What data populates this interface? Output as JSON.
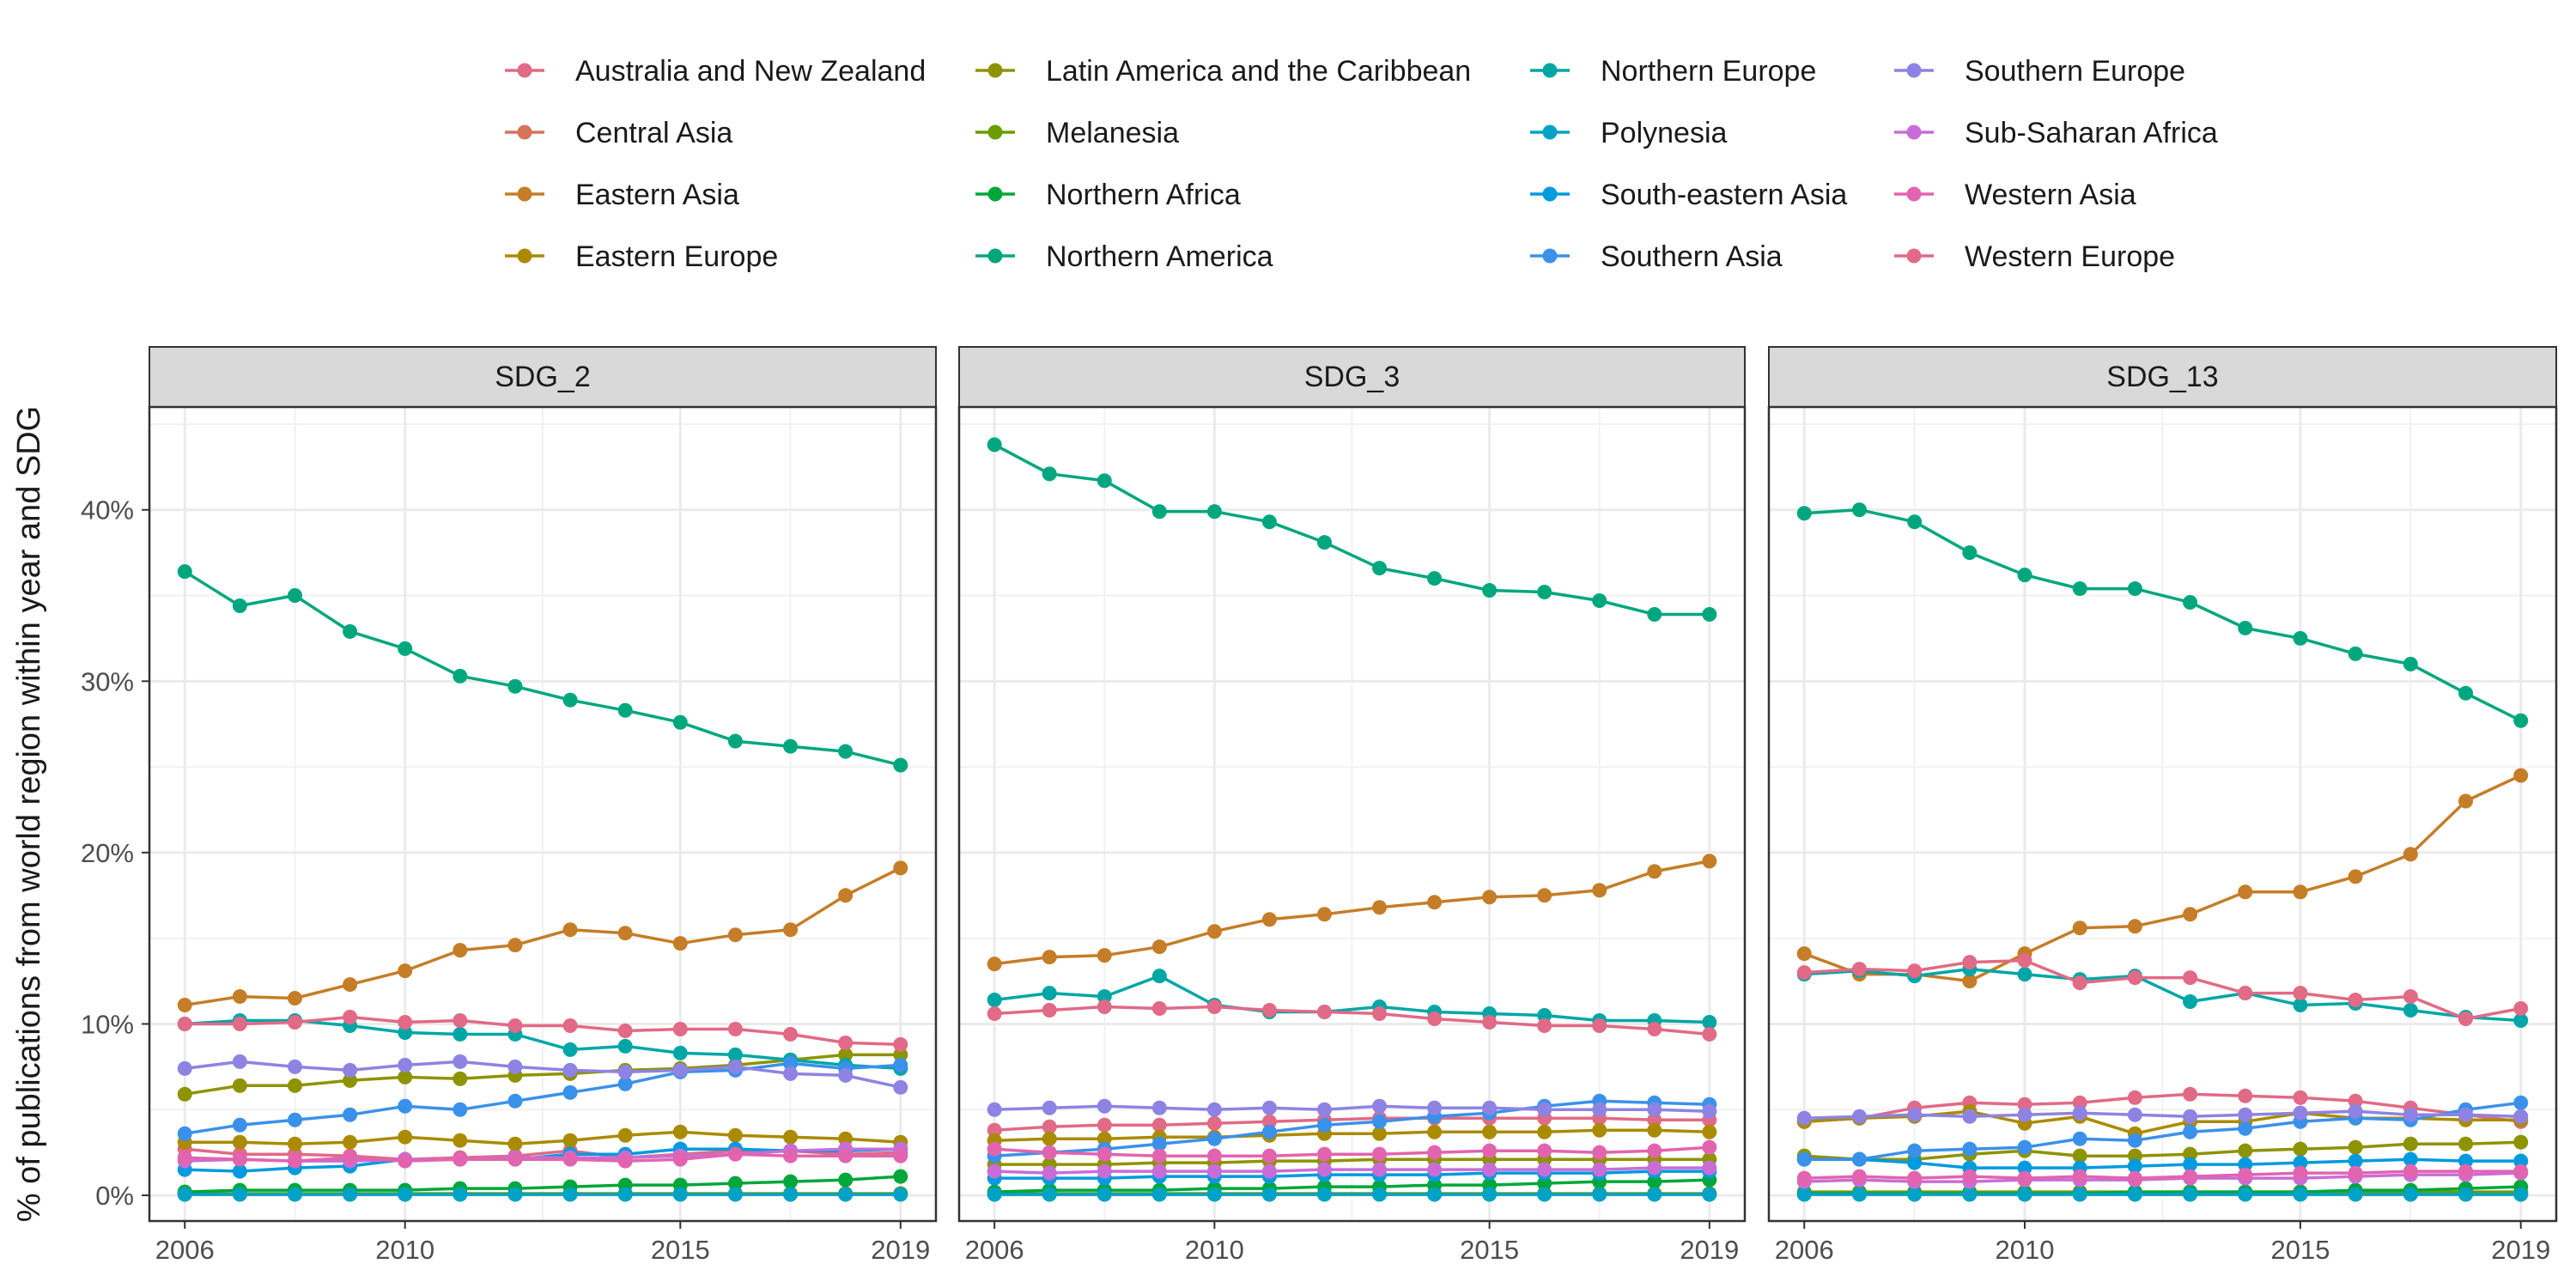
{
  "chart_data": {
    "type": "line",
    "ylabel": "% of publications from world region within year and SDG",
    "xlabel": "",
    "x": [
      2006,
      2007,
      2008,
      2009,
      2010,
      2011,
      2012,
      2013,
      2014,
      2015,
      2016,
      2017,
      2018,
      2019
    ],
    "x_ticks": [
      2006,
      2010,
      2015,
      2019
    ],
    "y_ticks": [
      0,
      10,
      20,
      30,
      40
    ],
    "y_tick_labels": [
      "0%",
      "10%",
      "20%",
      "30%",
      "40%"
    ],
    "ylim": [
      -1.5,
      46
    ],
    "legend_position": "top",
    "facets": [
      "SDG_2",
      "SDG_3",
      "SDG_13"
    ],
    "series": [
      {
        "name": "Australia and New Zealand",
        "color": "#E16A86",
        "values": {
          "SDG_2": [
            2.7,
            2.4,
            2.4,
            2.3,
            2.1,
            2.2,
            2.3,
            2.6,
            2.2,
            2.4,
            2.6,
            2.6,
            2.4,
            2.5
          ],
          "SDG_3": [
            3.8,
            4.0,
            4.1,
            4.1,
            4.2,
            4.3,
            4.4,
            4.5,
            4.5,
            4.5,
            4.5,
            4.5,
            4.4,
            4.4
          ],
          "SDG_13": [
            4.3,
            4.5,
            5.1,
            5.4,
            5.3,
            5.4,
            5.7,
            5.9,
            5.8,
            5.7,
            5.5,
            5.1,
            4.7,
            4.3
          ]
        }
      },
      {
        "name": "Central Asia",
        "color": "#D5735B",
        "values": {
          "SDG_2": [
            0.1,
            0.1,
            0.1,
            0.1,
            0.1,
            0.1,
            0.1,
            0.1,
            0.1,
            0.1,
            0.1,
            0.1,
            0.1,
            0.1
          ],
          "SDG_3": [
            0.1,
            0.1,
            0.1,
            0.1,
            0.1,
            0.1,
            0.1,
            0.1,
            0.1,
            0.1,
            0.1,
            0.1,
            0.1,
            0.1
          ],
          "SDG_13": [
            0.1,
            0.1,
            0.1,
            0.1,
            0.1,
            0.1,
            0.1,
            0.1,
            0.1,
            0.1,
            0.1,
            0.1,
            0.1,
            0.1
          ]
        }
      },
      {
        "name": "Eastern Asia",
        "color": "#C57D27",
        "values": {
          "SDG_2": [
            11.1,
            11.6,
            11.5,
            12.3,
            13.1,
            14.3,
            14.6,
            15.5,
            15.3,
            14.7,
            15.2,
            15.5,
            17.5,
            19.1
          ],
          "SDG_3": [
            13.5,
            13.9,
            14.0,
            14.5,
            15.4,
            16.1,
            16.4,
            16.8,
            17.1,
            17.4,
            17.5,
            17.8,
            18.9,
            19.5
          ],
          "SDG_13": [
            14.1,
            12.9,
            12.9,
            12.5,
            14.1,
            15.6,
            15.7,
            16.4,
            17.7,
            17.7,
            18.6,
            19.9,
            23.0,
            24.5
          ]
        }
      },
      {
        "name": "Eastern Europe",
        "color": "#AA8B00",
        "values": {
          "SDG_2": [
            3.1,
            3.1,
            3.0,
            3.1,
            3.4,
            3.2,
            3.0,
            3.2,
            3.5,
            3.7,
            3.5,
            3.4,
            3.3,
            3.1
          ],
          "SDG_3": [
            3.2,
            3.3,
            3.3,
            3.4,
            3.4,
            3.5,
            3.6,
            3.6,
            3.7,
            3.7,
            3.7,
            3.8,
            3.8,
            3.7
          ],
          "SDG_13": [
            4.3,
            4.5,
            4.6,
            4.9,
            4.2,
            4.6,
            3.6,
            4.3,
            4.3,
            4.8,
            4.5,
            4.5,
            4.4,
            4.4
          ]
        }
      },
      {
        "name": "Latin America and the Caribbean",
        "color": "#8E9300",
        "values": {
          "SDG_2": [
            5.9,
            6.4,
            6.4,
            6.7,
            6.9,
            6.8,
            7.0,
            7.1,
            7.3,
            7.4,
            7.6,
            7.9,
            8.2,
            8.2
          ],
          "SDG_3": [
            1.8,
            1.8,
            1.8,
            1.9,
            1.9,
            2.0,
            2.0,
            2.1,
            2.1,
            2.1,
            2.1,
            2.1,
            2.1,
            2.1
          ],
          "SDG_13": [
            2.3,
            2.1,
            2.1,
            2.4,
            2.6,
            2.3,
            2.3,
            2.4,
            2.6,
            2.7,
            2.8,
            3.0,
            3.0,
            3.1
          ]
        }
      },
      {
        "name": "Melanesia",
        "color": "#6B9C00",
        "values": {
          "SDG_2": [
            0.1,
            0.1,
            0.1,
            0.1,
            0.1,
            0.1,
            0.1,
            0.1,
            0.1,
            0.1,
            0.1,
            0.1,
            0.1,
            0.1
          ],
          "SDG_3": [
            0.1,
            0.1,
            0.1,
            0.1,
            0.1,
            0.1,
            0.1,
            0.1,
            0.1,
            0.1,
            0.1,
            0.1,
            0.1,
            0.1
          ],
          "SDG_13": [
            0.2,
            0.2,
            0.2,
            0.2,
            0.2,
            0.2,
            0.2,
            0.2,
            0.2,
            0.2,
            0.2,
            0.2,
            0.2,
            0.2
          ]
        }
      },
      {
        "name": "Northern Africa",
        "color": "#00A73A",
        "values": {
          "SDG_2": [
            0.2,
            0.3,
            0.3,
            0.3,
            0.3,
            0.4,
            0.4,
            0.5,
            0.6,
            0.6,
            0.7,
            0.8,
            0.9,
            1.1
          ],
          "SDG_3": [
            0.2,
            0.3,
            0.3,
            0.3,
            0.4,
            0.4,
            0.5,
            0.5,
            0.6,
            0.6,
            0.7,
            0.8,
            0.8,
            0.9
          ],
          "SDG_13": [
            0.1,
            0.1,
            0.1,
            0.1,
            0.1,
            0.1,
            0.2,
            0.2,
            0.2,
            0.2,
            0.3,
            0.3,
            0.4,
            0.5
          ]
        }
      },
      {
        "name": "Northern America",
        "color": "#00A77E",
        "values": {
          "SDG_2": [
            36.4,
            34.4,
            35.0,
            32.9,
            31.9,
            30.3,
            29.7,
            28.9,
            28.3,
            27.6,
            26.5,
            26.2,
            25.9,
            25.1
          ],
          "SDG_3": [
            43.8,
            42.1,
            41.7,
            39.9,
            39.9,
            39.3,
            38.1,
            36.6,
            36.0,
            35.3,
            35.2,
            34.7,
            33.9,
            33.9
          ],
          "SDG_13": [
            39.8,
            40.0,
            39.3,
            37.5,
            36.2,
            35.4,
            35.4,
            34.6,
            33.1,
            32.5,
            31.6,
            31.0,
            29.3,
            27.7
          ]
        }
      },
      {
        "name": "Northern Europe",
        "color": "#00A6A6",
        "values": {
          "SDG_2": [
            10.0,
            10.2,
            10.2,
            9.9,
            9.5,
            9.4,
            9.4,
            8.5,
            8.7,
            8.3,
            8.2,
            7.9,
            7.6,
            7.4
          ],
          "SDG_3": [
            11.4,
            11.8,
            11.6,
            12.8,
            11.1,
            10.7,
            10.7,
            11.0,
            10.7,
            10.6,
            10.5,
            10.2,
            10.2,
            10.1
          ],
          "SDG_13": [
            12.9,
            13.1,
            12.8,
            13.2,
            12.9,
            12.6,
            12.8,
            11.3,
            11.8,
            11.1,
            11.2,
            10.8,
            10.4,
            10.2
          ]
        }
      },
      {
        "name": "Polynesia",
        "color": "#00A2C6",
        "values": {
          "SDG_2": [
            0.05,
            0.05,
            0.05,
            0.05,
            0.05,
            0.05,
            0.05,
            0.05,
            0.05,
            0.05,
            0.05,
            0.05,
            0.05,
            0.05
          ],
          "SDG_3": [
            0.05,
            0.05,
            0.05,
            0.05,
            0.05,
            0.05,
            0.05,
            0.05,
            0.05,
            0.05,
            0.05,
            0.05,
            0.05,
            0.05
          ],
          "SDG_13": [
            0.05,
            0.05,
            0.05,
            0.05,
            0.05,
            0.05,
            0.05,
            0.05,
            0.05,
            0.05,
            0.05,
            0.05,
            0.05,
            0.05
          ]
        }
      },
      {
        "name": "South-eastern Asia",
        "color": "#009ADE",
        "values": {
          "SDG_2": [
            1.5,
            1.4,
            1.6,
            1.7,
            2.1,
            2.1,
            2.1,
            2.4,
            2.4,
            2.7,
            2.7,
            2.6,
            2.6,
            2.7
          ],
          "SDG_3": [
            1.0,
            1.0,
            1.0,
            1.1,
            1.1,
            1.1,
            1.2,
            1.2,
            1.2,
            1.3,
            1.3,
            1.3,
            1.4,
            1.4
          ],
          "SDG_13": [
            2.1,
            2.1,
            1.9,
            1.6,
            1.6,
            1.6,
            1.7,
            1.8,
            1.8,
            1.9,
            2.0,
            2.1,
            2.0,
            2.0
          ]
        }
      },
      {
        "name": "Southern Asia",
        "color": "#3A91EA",
        "values": {
          "SDG_2": [
            3.6,
            4.1,
            4.4,
            4.7,
            5.2,
            5.0,
            5.5,
            6.0,
            6.5,
            7.2,
            7.3,
            7.7,
            7.4,
            7.6
          ],
          "SDG_3": [
            2.3,
            2.5,
            2.7,
            3.0,
            3.3,
            3.7,
            4.1,
            4.3,
            4.6,
            4.8,
            5.2,
            5.5,
            5.4,
            5.3
          ],
          "SDG_13": [
            2.1,
            2.1,
            2.6,
            2.7,
            2.8,
            3.3,
            3.2,
            3.7,
            3.9,
            4.3,
            4.5,
            4.4,
            5.0,
            5.4
          ]
        }
      },
      {
        "name": "Southern Europe",
        "color": "#8E83E3",
        "values": {
          "SDG_2": [
            7.4,
            7.8,
            7.5,
            7.3,
            7.6,
            7.8,
            7.5,
            7.3,
            7.2,
            7.3,
            7.5,
            7.1,
            7.0,
            6.3
          ],
          "SDG_3": [
            5.0,
            5.1,
            5.2,
            5.1,
            5.0,
            5.1,
            5.0,
            5.2,
            5.1,
            5.1,
            5.0,
            5.0,
            5.0,
            4.9
          ],
          "SDG_13": [
            4.5,
            4.6,
            4.7,
            4.6,
            4.7,
            4.8,
            4.7,
            4.6,
            4.7,
            4.8,
            4.9,
            4.7,
            4.7,
            4.6
          ]
        }
      },
      {
        "name": "Sub-Saharan Africa",
        "color": "#C86DD7",
        "values": {
          "SDG_2": [
            2.0,
            2.1,
            2.0,
            2.0,
            2.1,
            2.1,
            2.2,
            2.2,
            2.2,
            2.3,
            2.4,
            2.6,
            2.7,
            2.7
          ],
          "SDG_3": [
            1.4,
            1.3,
            1.4,
            1.4,
            1.4,
            1.4,
            1.5,
            1.5,
            1.5,
            1.5,
            1.5,
            1.5,
            1.6,
            1.6
          ],
          "SDG_13": [
            0.8,
            0.9,
            0.8,
            0.8,
            0.9,
            0.9,
            0.9,
            1.0,
            1.0,
            1.0,
            1.1,
            1.2,
            1.2,
            1.3
          ]
        }
      },
      {
        "name": "Western Asia",
        "color": "#E264AF",
        "values": {
          "SDG_2": [
            2.2,
            2.1,
            2.0,
            2.2,
            2.0,
            2.1,
            2.1,
            2.1,
            2.0,
            2.1,
            2.4,
            2.3,
            2.3,
            2.3
          ],
          "SDG_3": [
            2.7,
            2.5,
            2.4,
            2.3,
            2.3,
            2.3,
            2.4,
            2.4,
            2.5,
            2.6,
            2.6,
            2.5,
            2.6,
            2.8
          ],
          "SDG_13": [
            1.0,
            1.1,
            1.0,
            1.1,
            1.0,
            1.1,
            1.0,
            1.1,
            1.2,
            1.3,
            1.3,
            1.4,
            1.4,
            1.4
          ]
        }
      },
      {
        "name": "Western Europe",
        "color": "#E16A86",
        "values": {
          "SDG_2": [
            10.0,
            10.0,
            10.1,
            10.4,
            10.1,
            10.2,
            9.9,
            9.9,
            9.6,
            9.7,
            9.7,
            9.4,
            8.9,
            8.8
          ],
          "SDG_3": [
            10.6,
            10.8,
            11.0,
            10.9,
            11.0,
            10.8,
            10.7,
            10.6,
            10.3,
            10.1,
            9.9,
            9.9,
            9.7,
            9.4
          ],
          "SDG_13": [
            13.0,
            13.2,
            13.1,
            13.6,
            13.7,
            12.4,
            12.7,
            12.7,
            11.8,
            11.8,
            11.4,
            11.6,
            10.3,
            10.9
          ]
        }
      }
    ]
  }
}
